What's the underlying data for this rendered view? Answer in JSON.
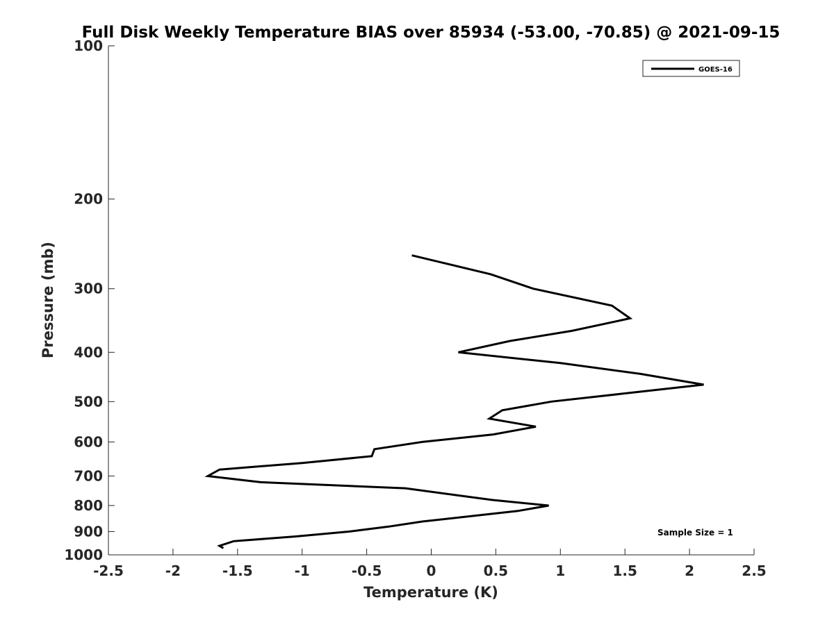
{
  "chart_data": {
    "type": "line",
    "title": "Full Disk Weekly Temperature BIAS over 85934 (-53.00, -70.85) @ 2021-09-15",
    "xlabel": "Temperature (K)",
    "ylabel": "Pressure (mb)",
    "xlim": [
      -2.5,
      2.5
    ],
    "ylim": [
      1000,
      100
    ],
    "yscale": "log",
    "y_reversed": true,
    "x_ticks": [
      "-2.5",
      "-2",
      "-1.5",
      "-1",
      "-0.5",
      "0",
      "0.5",
      "1",
      "1.5",
      "2",
      "2.5"
    ],
    "y_ticks": [
      "100",
      "200",
      "300",
      "400",
      "500",
      "600",
      "700",
      "800",
      "900",
      "1000"
    ],
    "grid": false,
    "legend": {
      "position": "top-right",
      "entries": [
        "GOES-16"
      ]
    },
    "annotation": "Sample Size = 1",
    "series": [
      {
        "name": "GOES-16",
        "color": "#000000",
        "points": [
          {
            "x": -0.15,
            "y": 258
          },
          {
            "x": 0.46,
            "y": 281
          },
          {
            "x": 0.79,
            "y": 300
          },
          {
            "x": 1.4,
            "y": 324
          },
          {
            "x": 1.54,
            "y": 343
          },
          {
            "x": 1.09,
            "y": 363
          },
          {
            "x": 0.61,
            "y": 380
          },
          {
            "x": 0.21,
            "y": 400
          },
          {
            "x": 1.0,
            "y": 420
          },
          {
            "x": 1.62,
            "y": 441
          },
          {
            "x": 2.11,
            "y": 463
          },
          {
            "x": 1.56,
            "y": 480
          },
          {
            "x": 0.93,
            "y": 500
          },
          {
            "x": 0.55,
            "y": 520
          },
          {
            "x": 0.45,
            "y": 540
          },
          {
            "x": 0.81,
            "y": 560
          },
          {
            "x": 0.48,
            "y": 580
          },
          {
            "x": -0.07,
            "y": 600
          },
          {
            "x": -0.44,
            "y": 620
          },
          {
            "x": -0.46,
            "y": 640
          },
          {
            "x": -1.0,
            "y": 660
          },
          {
            "x": -1.64,
            "y": 680
          },
          {
            "x": -1.73,
            "y": 700
          },
          {
            "x": -1.32,
            "y": 720
          },
          {
            "x": -0.2,
            "y": 740
          },
          {
            "x": 0.47,
            "y": 780
          },
          {
            "x": 0.91,
            "y": 800
          },
          {
            "x": 0.67,
            "y": 820
          },
          {
            "x": -0.07,
            "y": 860
          },
          {
            "x": -0.33,
            "y": 880
          },
          {
            "x": -0.64,
            "y": 900
          },
          {
            "x": -1.05,
            "y": 920
          },
          {
            "x": -1.53,
            "y": 940
          },
          {
            "x": -1.64,
            "y": 960
          },
          {
            "x": -1.61,
            "y": 970
          }
        ]
      }
    ]
  }
}
